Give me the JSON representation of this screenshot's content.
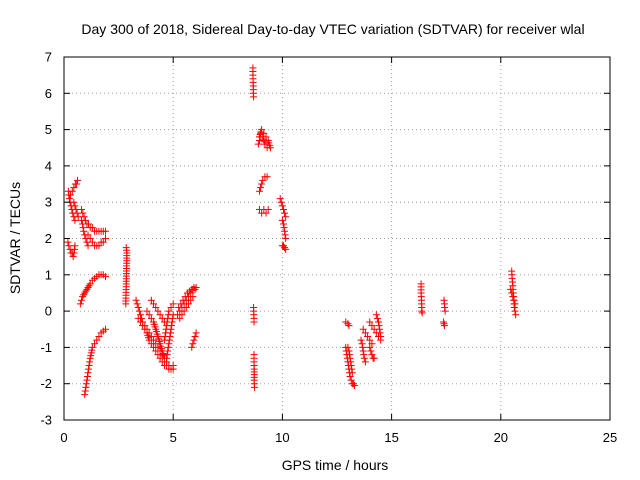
{
  "chart_data": {
    "type": "scatter",
    "title": "Day 300 of 2018, Sidereal Day-to-day VTEC variation (SDTVAR) for receiver wlal",
    "xlabel": "GPS time / hours",
    "ylabel": "SDTVAR / TECUs",
    "xlim": [
      0,
      25
    ],
    "ylim": [
      -3,
      7
    ],
    "xticks": [
      0,
      5,
      10,
      15,
      20,
      25
    ],
    "yticks": [
      -3,
      -2,
      -1,
      0,
      1,
      2,
      3,
      4,
      5,
      6,
      7
    ],
    "grid": true,
    "marker": "+",
    "color": "#ff0000",
    "segments": [
      {
        "x": [
          0.2,
          0.22,
          0.25,
          0.28,
          0.32,
          0.36,
          0.4,
          0.45,
          0.5
        ],
        "y": [
          3.3,
          3.2,
          3.1,
          3.0,
          2.9,
          2.8,
          2.7,
          2.6,
          2.5
        ]
      },
      {
        "x": [
          0.3,
          0.38,
          0.45,
          0.52,
          0.58,
          0.62
        ],
        "y": [
          3.2,
          3.3,
          3.4,
          3.5,
          3.5,
          3.6
        ]
      },
      {
        "x": [
          0.45,
          0.5,
          0.55,
          0.6,
          0.65
        ],
        "y": [
          3.0,
          2.9,
          2.8,
          2.7,
          2.6
        ]
      },
      {
        "x": [
          0.18,
          0.22,
          0.28,
          0.32,
          0.38,
          0.42,
          0.46,
          0.5
        ],
        "y": [
          1.9,
          1.8,
          1.7,
          1.6,
          1.6,
          1.5,
          1.6,
          1.8
        ]
      },
      {
        "x": [
          0.8,
          0.86,
          0.92,
          0.98,
          1.05,
          1.12,
          1.2,
          1.3,
          1.4,
          1.5,
          1.6,
          1.7,
          1.8,
          1.9
        ],
        "y": [
          2.8,
          2.7,
          2.6,
          2.5,
          2.4,
          2.4,
          2.3,
          2.3,
          2.2,
          2.2,
          2.2,
          2.2,
          2.2,
          2.2
        ]
      },
      {
        "x": [
          0.8,
          0.85,
          0.9,
          0.95,
          1.0,
          1.05,
          1.1
        ],
        "y": [
          2.5,
          2.4,
          2.2,
          2.1,
          2.0,
          1.9,
          1.8
        ]
      },
      {
        "x": [
          1.1,
          1.2,
          1.3,
          1.4,
          1.5,
          1.6,
          1.7,
          1.8,
          1.9
        ],
        "y": [
          2.1,
          2.0,
          1.9,
          1.8,
          1.8,
          1.8,
          1.9,
          1.9,
          2.0
        ]
      },
      {
        "x": [
          0.75,
          0.8,
          0.85,
          0.9,
          0.95,
          1.0,
          1.05,
          1.1,
          1.15,
          1.2,
          1.3,
          1.4,
          1.5,
          1.6,
          1.7,
          1.8,
          1.9
        ],
        "y": [
          0.2,
          0.3,
          0.4,
          0.45,
          0.5,
          0.55,
          0.6,
          0.65,
          0.7,
          0.75,
          0.85,
          0.9,
          0.95,
          1.0,
          1.0,
          1.0,
          0.95
        ]
      },
      {
        "x": [
          0.95,
          1.0,
          1.05,
          1.1,
          1.15,
          1.2,
          1.3,
          1.4,
          1.5,
          1.6,
          1.7,
          1.8,
          1.9
        ],
        "y": [
          -2.3,
          -2.1,
          -1.9,
          -1.7,
          -1.5,
          -1.3,
          -1.0,
          -0.9,
          -0.8,
          -0.7,
          -0.6,
          -0.55,
          -0.5
        ]
      },
      {
        "x": [
          2.85,
          2.88,
          2.85,
          2.83
        ],
        "y": [
          1.75,
          1.6,
          0.75,
          0.2
        ]
      },
      {
        "x": [
          3.3,
          3.35,
          3.4,
          3.45,
          3.5,
          3.55,
          3.6,
          3.7,
          3.8,
          3.9,
          4.0,
          4.1,
          4.2,
          4.3,
          4.4,
          4.5
        ],
        "y": [
          0.3,
          0.2,
          0.1,
          0.0,
          -0.1,
          -0.2,
          -0.3,
          -0.4,
          -0.5,
          -0.6,
          -0.7,
          -0.8,
          -0.9,
          -1.0,
          -1.1,
          -1.2
        ]
      },
      {
        "x": [
          3.4,
          3.5,
          3.6,
          3.7,
          3.8,
          3.9,
          4.0,
          4.1,
          4.2,
          4.3,
          4.4,
          4.5,
          4.6,
          4.7,
          4.8,
          4.9,
          5.0
        ],
        "y": [
          -0.2,
          -0.3,
          -0.4,
          -0.5,
          -0.6,
          -0.8,
          -0.9,
          -1.0,
          -1.1,
          -1.2,
          -1.3,
          -1.4,
          -1.5,
          -1.5,
          -1.6,
          -1.6,
          -1.5
        ]
      },
      {
        "x": [
          3.8,
          3.9,
          4.0,
          4.1,
          4.2,
          4.3,
          4.4,
          4.5,
          4.6,
          4.7,
          4.8,
          4.9,
          5.0
        ],
        "y": [
          0.0,
          -0.1,
          -0.2,
          -0.3,
          -0.5,
          -0.7,
          -0.9,
          -1.1,
          -1.3,
          -1.4,
          -1.5,
          -1.6,
          -1.6
        ]
      },
      {
        "x": [
          4.0,
          4.1,
          4.2,
          4.3,
          4.4,
          4.5,
          4.6
        ],
        "y": [
          0.3,
          0.2,
          0.1,
          0.0,
          -0.1,
          -0.2,
          -0.3
        ]
      },
      {
        "x": [
          4.7,
          4.75,
          4.8,
          4.85,
          4.9,
          4.95,
          5.0
        ],
        "y": [
          -1.3,
          -1.1,
          -0.9,
          -0.7,
          -0.5,
          -0.3,
          -0.1
        ]
      },
      {
        "x": [
          4.6,
          4.65,
          4.7,
          4.75,
          4.8,
          4.9,
          5.0
        ],
        "y": [
          -0.8,
          -0.6,
          -0.4,
          -0.2,
          0.0,
          0.1,
          0.2
        ]
      },
      {
        "x": [
          5.2,
          5.3,
          5.4,
          5.5,
          5.6,
          5.7,
          5.8,
          5.9,
          6.0
        ],
        "y": [
          -0.1,
          0.0,
          0.1,
          0.2,
          0.3,
          0.4,
          0.5,
          0.6,
          0.6
        ]
      },
      {
        "x": [
          5.25,
          5.35,
          5.45,
          5.55,
          5.65,
          5.75,
          5.85,
          5.95,
          6.05
        ],
        "y": [
          0.1,
          0.2,
          0.3,
          0.4,
          0.5,
          0.55,
          0.6,
          0.65,
          0.65
        ]
      },
      {
        "x": [
          5.3,
          5.4,
          5.5,
          5.6,
          5.7,
          5.8,
          5.9
        ],
        "y": [
          -0.2,
          -0.1,
          0.0,
          0.1,
          0.2,
          0.3,
          0.4
        ]
      },
      {
        "x": [
          5.85,
          5.9,
          5.95,
          6.0,
          6.05
        ],
        "y": [
          -1.0,
          -0.9,
          -0.8,
          -0.7,
          -0.6
        ]
      },
      {
        "x": [
          8.65,
          8.65,
          8.66,
          8.67,
          8.67,
          8.68
        ],
        "y": [
          6.7,
          6.5,
          6.3,
          6.1,
          6.0,
          5.9
        ]
      },
      {
        "x": [
          8.68,
          8.69,
          8.7,
          8.7
        ],
        "y": [
          0.1,
          -0.1,
          -0.2,
          -0.3
        ]
      },
      {
        "x": [
          8.7,
          8.7,
          8.71,
          8.71,
          8.72
        ],
        "y": [
          -1.2,
          -1.4,
          -1.6,
          -1.9,
          -2.1
        ]
      },
      {
        "x": [
          8.95,
          9.05,
          9.15,
          9.25,
          9.35,
          9.45
        ],
        "y": [
          4.8,
          5.0,
          4.9,
          4.8,
          4.7,
          4.5
        ]
      },
      {
        "x": [
          8.9,
          8.95,
          9.0,
          9.1,
          9.2,
          9.3
        ],
        "y": [
          4.6,
          4.7,
          4.9,
          4.8,
          4.6,
          4.5
        ]
      },
      {
        "x": [
          8.95,
          9.0,
          9.05,
          9.1,
          9.2,
          9.3
        ],
        "y": [
          3.3,
          3.4,
          3.5,
          3.6,
          3.7,
          3.7
        ]
      },
      {
        "x": [
          8.95,
          9.05,
          9.15,
          9.25,
          9.35
        ],
        "y": [
          2.8,
          2.7,
          2.8,
          2.7,
          2.8
        ]
      },
      {
        "x": [
          9.9,
          9.95,
          10.0,
          10.05,
          10.1,
          10.15
        ],
        "y": [
          3.1,
          3.0,
          2.9,
          2.8,
          2.7,
          2.6
        ]
      },
      {
        "x": [
          10.0,
          10.05,
          10.1,
          10.15
        ],
        "y": [
          2.5,
          2.4,
          2.2,
          2.0
        ]
      },
      {
        "x": [
          10.0,
          10.05,
          10.1,
          10.15
        ],
        "y": [
          1.8,
          1.8,
          1.75,
          1.7
        ]
      },
      {
        "x": [
          12.9,
          13.0,
          13.05
        ],
        "y": [
          -0.3,
          -0.35,
          -0.4
        ]
      },
      {
        "x": [
          12.9,
          12.95,
          13.0,
          13.05,
          13.1,
          13.15,
          13.2,
          13.25,
          13.3
        ],
        "y": [
          -1.0,
          -1.2,
          -1.4,
          -1.6,
          -1.8,
          -1.9,
          -2.0,
          -2.0,
          -2.05
        ]
      },
      {
        "x": [
          13.0,
          13.05,
          13.1,
          13.15,
          13.2
        ],
        "y": [
          -1.0,
          -1.1,
          -1.3,
          -1.5,
          -1.7
        ]
      },
      {
        "x": [
          13.6,
          13.65,
          13.7,
          13.75,
          13.8
        ],
        "y": [
          -0.8,
          -0.9,
          -1.1,
          -1.3,
          -1.4
        ]
      },
      {
        "x": [
          13.7,
          13.8,
          13.9,
          14.0,
          14.1
        ],
        "y": [
          -0.5,
          -0.6,
          -0.7,
          -0.8,
          -0.9
        ]
      },
      {
        "x": [
          14.0,
          14.05,
          14.1,
          14.15,
          14.2
        ],
        "y": [
          -1.0,
          -1.1,
          -1.2,
          -1.3,
          -1.3
        ]
      },
      {
        "x": [
          14.0,
          14.1,
          14.2,
          14.3,
          14.4,
          14.5
        ],
        "y": [
          -0.3,
          -0.4,
          -0.5,
          -0.6,
          -0.7,
          -0.8
        ]
      },
      {
        "x": [
          14.3,
          14.35,
          14.4,
          14.45,
          14.5
        ],
        "y": [
          -0.1,
          -0.2,
          -0.3,
          -0.5,
          -0.7
        ]
      },
      {
        "x": [
          16.35,
          16.35,
          16.37,
          16.38,
          16.38,
          16.4
        ],
        "y": [
          0.75,
          0.5,
          0.3,
          0.1,
          0.0,
          -0.05
        ]
      },
      {
        "x": [
          17.4,
          17.42,
          17.43,
          17.45
        ],
        "y": [
          0.3,
          0.2,
          0.1,
          0.0
        ]
      },
      {
        "x": [
          17.38,
          17.4,
          17.42
        ],
        "y": [
          -0.3,
          -0.35,
          -0.4
        ]
      },
      {
        "x": [
          20.5,
          20.52,
          20.55,
          20.57,
          20.6,
          20.62,
          20.65,
          20.68
        ],
        "y": [
          1.1,
          0.9,
          0.7,
          0.5,
          0.3,
          0.1,
          0.0,
          -0.1
        ]
      },
      {
        "x": [
          20.45,
          20.5,
          20.55,
          20.6,
          20.65
        ],
        "y": [
          0.6,
          0.5,
          0.4,
          0.3,
          0.2
        ]
      }
    ]
  }
}
